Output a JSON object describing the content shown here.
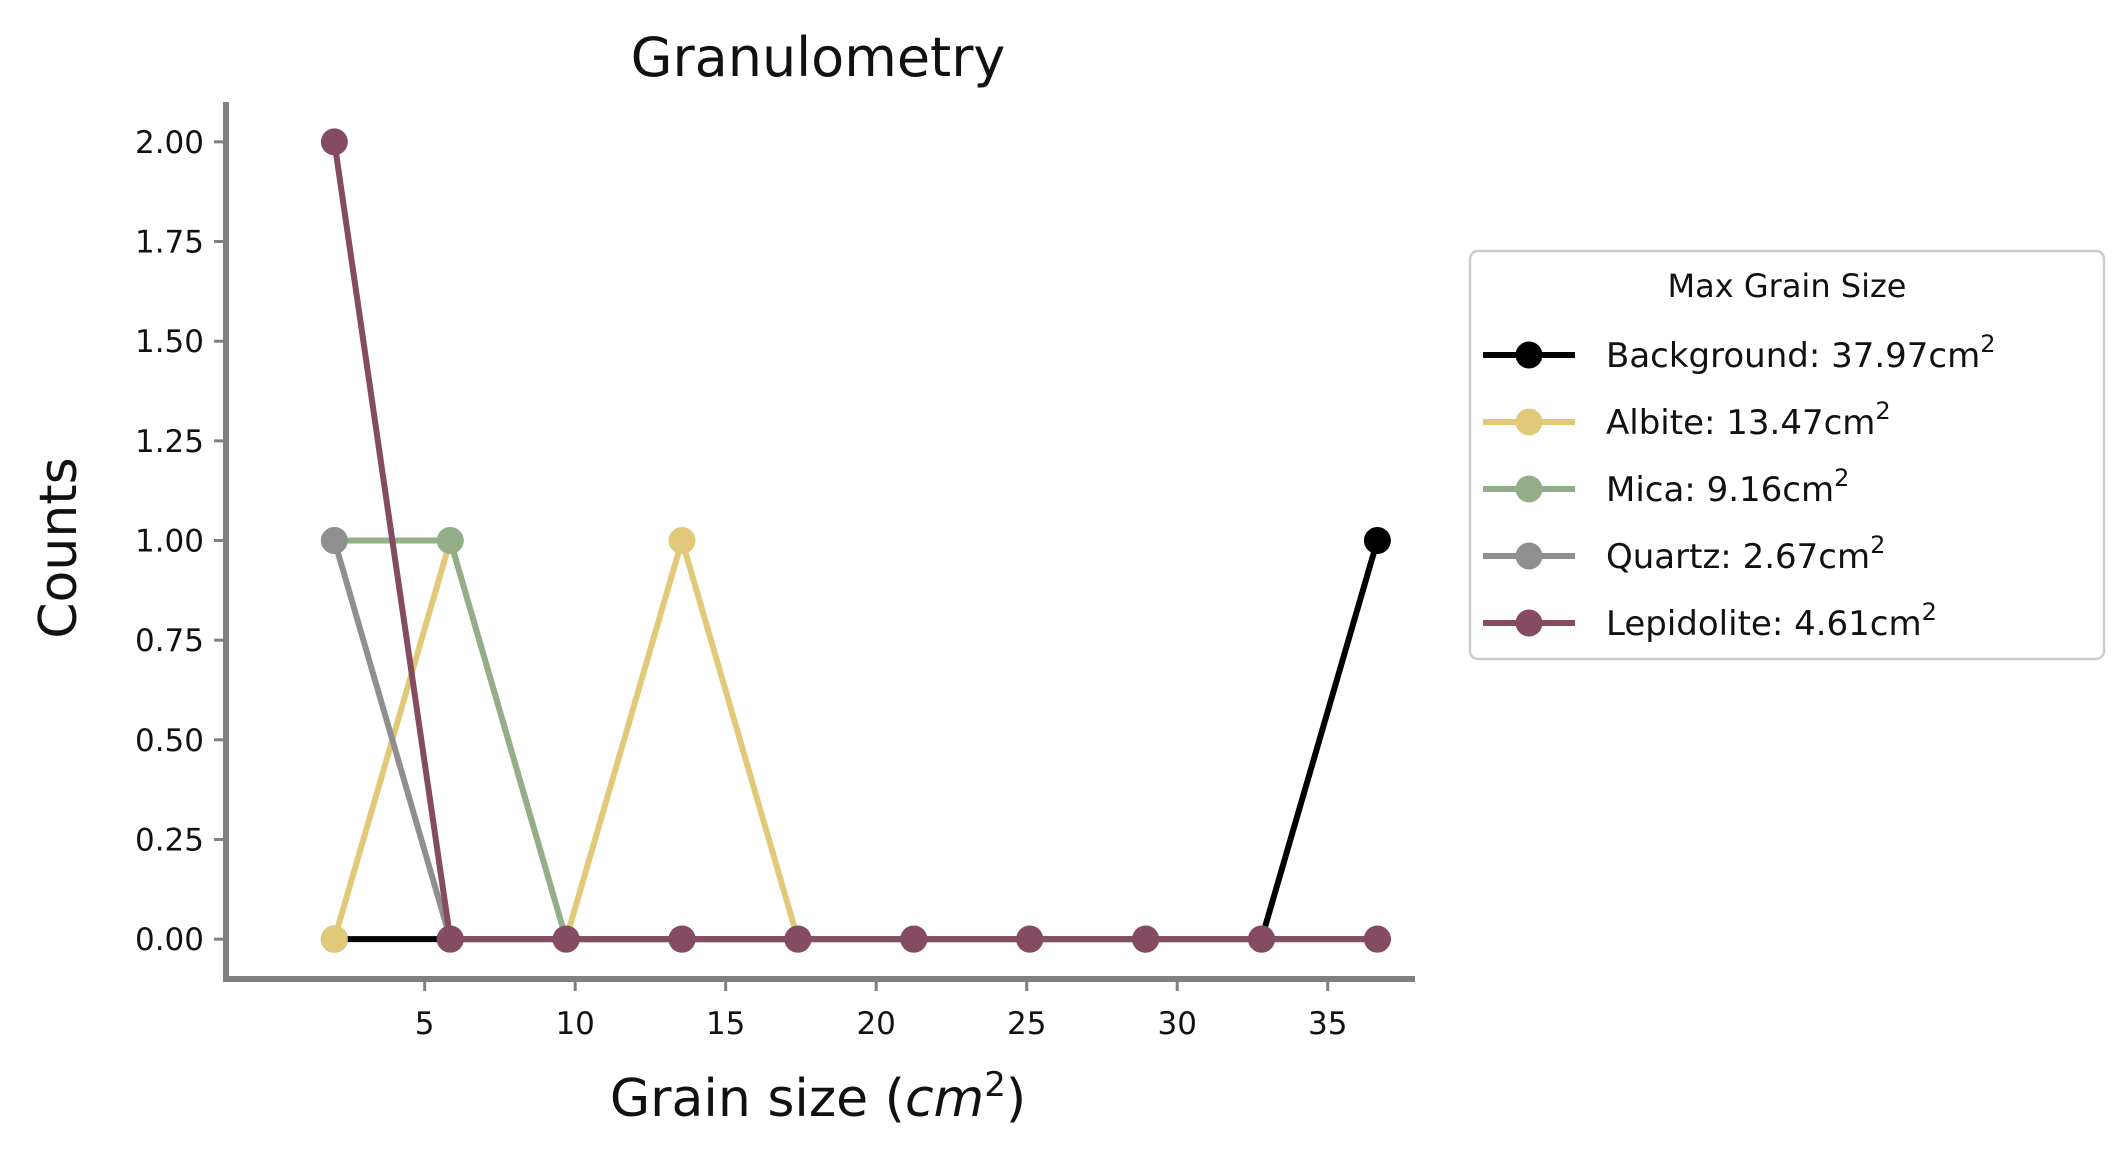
{
  "chart_data": {
    "type": "line",
    "title": "Granulometry",
    "xlabel_main": "Grain size (",
    "xlabel_unit": "cm",
    "xlabel_exp": "2",
    "xlabel_close": ")",
    "ylabel": "Counts",
    "x": [
      2.0,
      5.85,
      9.7,
      13.55,
      17.4,
      21.25,
      25.1,
      28.95,
      32.8,
      36.65
    ],
    "xlim": [
      -1.6,
      37.8
    ],
    "ylim": [
      -0.1,
      2.1
    ],
    "xticks": [
      5,
      10,
      15,
      20,
      25,
      30,
      35
    ],
    "yticks": [
      0.0,
      0.25,
      0.5,
      0.75,
      1.0,
      1.25,
      1.5,
      1.75,
      2.0
    ],
    "ytick_labels": [
      "0.00",
      "0.25",
      "0.50",
      "0.75",
      "1.00",
      "1.25",
      "1.50",
      "1.75",
      "2.00"
    ],
    "grid": false,
    "legend": {
      "title": "Max Grain Size",
      "placement": "outside-right",
      "unit": "cm",
      "exp": "2"
    },
    "series": [
      {
        "name": "Background: 37.97",
        "color": "#000000",
        "values": [
          0,
          0,
          0,
          0,
          0,
          0,
          0,
          0,
          0,
          1
        ]
      },
      {
        "name": "Albite: 13.47",
        "color": "#e2c97a",
        "values": [
          0,
          1,
          0,
          1,
          0,
          0,
          0,
          0,
          0,
          0
        ]
      },
      {
        "name": "Mica: 9.16",
        "color": "#94ad8a",
        "values": [
          1,
          1,
          0,
          0,
          0,
          0,
          0,
          0,
          0,
          0
        ]
      },
      {
        "name": "Quartz: 2.67",
        "color": "#8f8f8f",
        "values": [
          1,
          0,
          0,
          0,
          0,
          0,
          0,
          0,
          0,
          0
        ]
      },
      {
        "name": "Lepidolite: 4.61",
        "color": "#844b62",
        "values": [
          2,
          0,
          0,
          0,
          0,
          0,
          0,
          0,
          0,
          0
        ]
      }
    ],
    "axis_color": "#808080"
  }
}
